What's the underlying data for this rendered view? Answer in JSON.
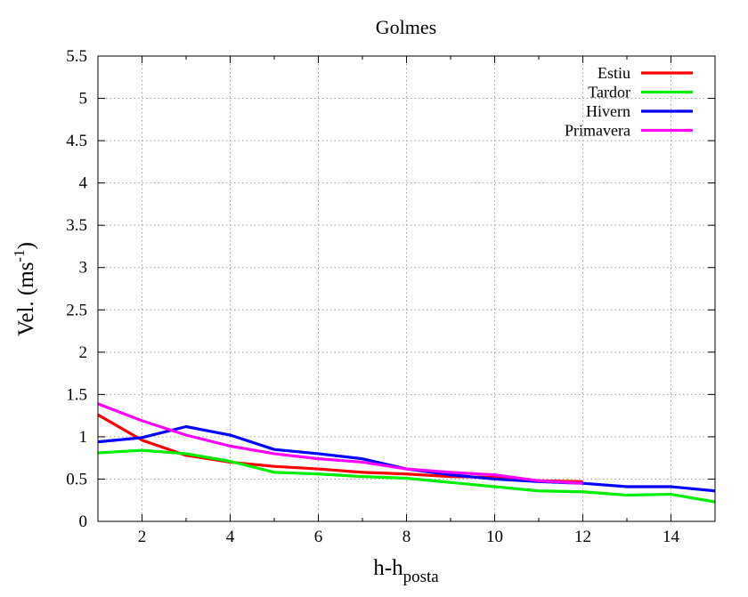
{
  "chart_data": {
    "type": "line",
    "title": "Golmes",
    "xlabel": {
      "base": "h-h",
      "sub": "posta"
    },
    "ylabel": {
      "prefix": "Vel. (ms",
      "sup": "-1",
      "suffix": ")"
    },
    "xlim": [
      1,
      15
    ],
    "ylim": [
      0,
      5.5
    ],
    "xticks": [
      "2",
      "4",
      "6",
      "8",
      "10",
      "12",
      "14"
    ],
    "yticks": [
      "0",
      "0.5",
      "1",
      "1.5",
      "2",
      "2.5",
      "3",
      "3.5",
      "4",
      "4.5",
      "5",
      "5.5"
    ],
    "grid": true,
    "legend_position": "top-right",
    "series": [
      {
        "name": "Estiu",
        "color": "#ff0000",
        "x": [
          1,
          2,
          3,
          4,
          5,
          6,
          7,
          8,
          9,
          10,
          11,
          12
        ],
        "y": [
          1.26,
          0.96,
          0.78,
          0.7,
          0.65,
          0.62,
          0.58,
          0.56,
          0.53,
          0.52,
          0.48,
          0.47
        ]
      },
      {
        "name": "Tardor",
        "color": "#00ee00",
        "x": [
          1,
          2,
          3,
          4,
          5,
          6,
          7,
          8,
          9,
          10,
          11,
          12,
          13,
          14,
          15
        ],
        "y": [
          0.81,
          0.84,
          0.8,
          0.71,
          0.58,
          0.56,
          0.53,
          0.51,
          0.46,
          0.41,
          0.36,
          0.35,
          0.31,
          0.32,
          0.23
        ]
      },
      {
        "name": "Hivern",
        "color": "#0000ff",
        "x": [
          1,
          2,
          3,
          4,
          5,
          6,
          7,
          8,
          9,
          10,
          11,
          12,
          13,
          14,
          15
        ],
        "y": [
          0.94,
          0.99,
          1.12,
          1.02,
          0.85,
          0.8,
          0.74,
          0.62,
          0.55,
          0.5,
          0.47,
          0.45,
          0.41,
          0.41,
          0.36
        ]
      },
      {
        "name": "Primavera",
        "color": "#ff00ff",
        "x": [
          1,
          2,
          3,
          4,
          5,
          6,
          7,
          8,
          9,
          10,
          11,
          12
        ],
        "y": [
          1.39,
          1.19,
          1.02,
          0.89,
          0.8,
          0.74,
          0.7,
          0.62,
          0.58,
          0.55,
          0.48,
          0.45
        ]
      }
    ]
  }
}
